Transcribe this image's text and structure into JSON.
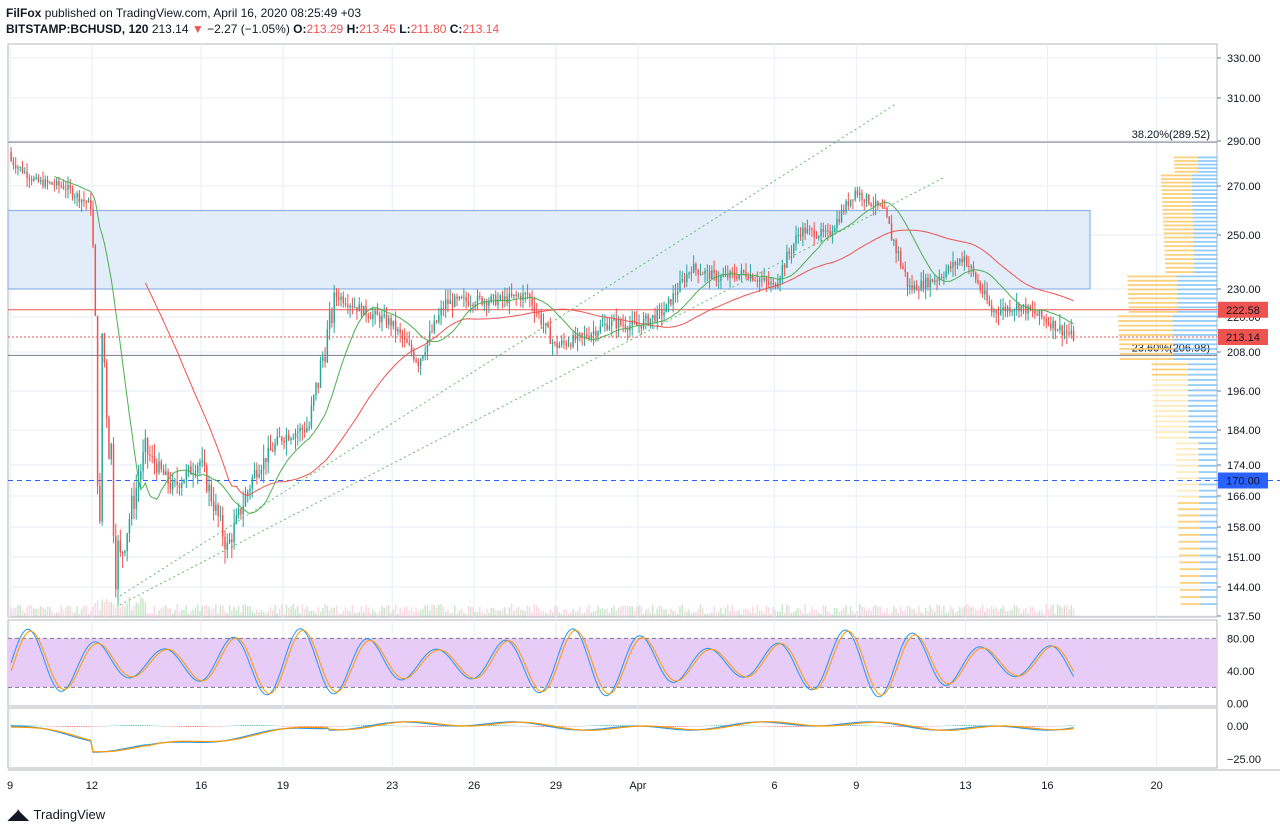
{
  "header": {
    "author": "FilFox",
    "published_text": "published on TradingView.com, April 16, 2020 08:25:49 +03",
    "symbol": "BITSTAMP:BCHUSD, 120",
    "last": "213.14",
    "change": "−2.27 (−1.05%)",
    "o_label": "O:",
    "o_val": "213.29",
    "h_label": "H:",
    "h_val": "213.45",
    "l_label": "L:",
    "l_val": "211.80",
    "c_label": "C:",
    "c_val": "213.14"
  },
  "footer": {
    "brand": "TradingView"
  },
  "colors": {
    "up": "#26a69a",
    "down": "#ef5350",
    "grid": "#e6eef7",
    "zone": "#e3edf9",
    "zone_border": "#8fb3e8",
    "ma_red": "#ef5350",
    "ma_green": "#4caf50",
    "rsi_band": "#e6ccf7",
    "macd_blue": "#2196f3",
    "macd_orange": "#ff9800"
  },
  "chart_data": {
    "type": "line",
    "title": "BITSTAMP:BCHUSD, 120",
    "x_ticks": [
      {
        "label": "9",
        "pos": 0
      },
      {
        "label": "12",
        "pos": 3
      },
      {
        "label": "16",
        "pos": 7
      },
      {
        "label": "19",
        "pos": 10
      },
      {
        "label": "23",
        "pos": 14
      },
      {
        "label": "26",
        "pos": 17
      },
      {
        "label": "29",
        "pos": 20
      },
      {
        "label": "Apr",
        "pos": 23
      },
      {
        "label": "6",
        "pos": 28
      },
      {
        "label": "9",
        "pos": 31
      },
      {
        "label": "13",
        "pos": 35
      },
      {
        "label": "16",
        "pos": 38
      },
      {
        "label": "20",
        "pos": 42
      }
    ],
    "price_axis_ticks": [
      "330.00",
      "310.00",
      "290.00",
      "270.00",
      "250.00",
      "230.00",
      "220.00",
      "208.00",
      "196.00",
      "184.00",
      "174.00",
      "166.00",
      "158.00",
      "151.00",
      "144.00",
      "137.50"
    ],
    "price_labels": [
      {
        "text": "222.58",
        "price": 222.58,
        "color": "#ef5350"
      },
      {
        "text": "213.14",
        "price": 213.14,
        "color": "#ef5350"
      },
      {
        "text": "170.00",
        "price": 170.0,
        "color": "#2962ff"
      }
    ],
    "fib_levels": [
      {
        "text": "38.20%(289.52)",
        "price": 289.52
      },
      {
        "text": "23.60%(206.98)",
        "price": 206.98
      }
    ],
    "resistance_zone": [
      230.0,
      260.0
    ],
    "closes": [
      {
        "day": "Mar 9",
        "close": 272
      },
      {
        "day": "Mar 10",
        "close": 270
      },
      {
        "day": "Mar 11",
        "close": 262
      },
      {
        "day": "Mar 12",
        "close": 148
      },
      {
        "day": "Mar 13",
        "close": 178
      },
      {
        "day": "Mar 14",
        "close": 168
      },
      {
        "day": "Mar 15",
        "close": 175
      },
      {
        "day": "Mar 16",
        "close": 153
      },
      {
        "day": "Mar 17",
        "close": 172
      },
      {
        "day": "Mar 18",
        "close": 182
      },
      {
        "day": "Mar 19",
        "close": 185
      },
      {
        "day": "Mar 20",
        "close": 228
      },
      {
        "day": "Mar 21",
        "close": 222
      },
      {
        "day": "Mar 22",
        "close": 218
      },
      {
        "day": "Mar 23",
        "close": 205
      },
      {
        "day": "Mar 24",
        "close": 225
      },
      {
        "day": "Mar 25",
        "close": 226
      },
      {
        "day": "Mar 26",
        "close": 226
      },
      {
        "day": "Mar 27",
        "close": 228
      },
      {
        "day": "Mar 28",
        "close": 210
      },
      {
        "day": "Mar 29",
        "close": 213
      },
      {
        "day": "Mar 30",
        "close": 218
      },
      {
        "day": "Mar 31",
        "close": 217
      },
      {
        "day": "Apr 1",
        "close": 222
      },
      {
        "day": "Apr 2",
        "close": 238
      },
      {
        "day": "Apr 3",
        "close": 234
      },
      {
        "day": "Apr 4",
        "close": 236
      },
      {
        "day": "Apr 5",
        "close": 231
      },
      {
        "day": "Apr 6",
        "close": 252
      },
      {
        "day": "Apr 7",
        "close": 250
      },
      {
        "day": "Apr 8",
        "close": 268
      },
      {
        "day": "Apr 9",
        "close": 260
      },
      {
        "day": "Apr 10",
        "close": 230
      },
      {
        "day": "Apr 11",
        "close": 234
      },
      {
        "day": "Apr 12",
        "close": 242
      },
      {
        "day": "Apr 13",
        "close": 222
      },
      {
        "day": "Apr 14",
        "close": 224
      },
      {
        "day": "Apr 15",
        "close": 219
      },
      {
        "day": "Apr 16",
        "close": 213.14
      }
    ],
    "rsi_ticks": [
      "80.00",
      "40.00",
      "0.00"
    ],
    "macd_ticks": [
      "0.00",
      "−25.00"
    ],
    "grid": true
  }
}
